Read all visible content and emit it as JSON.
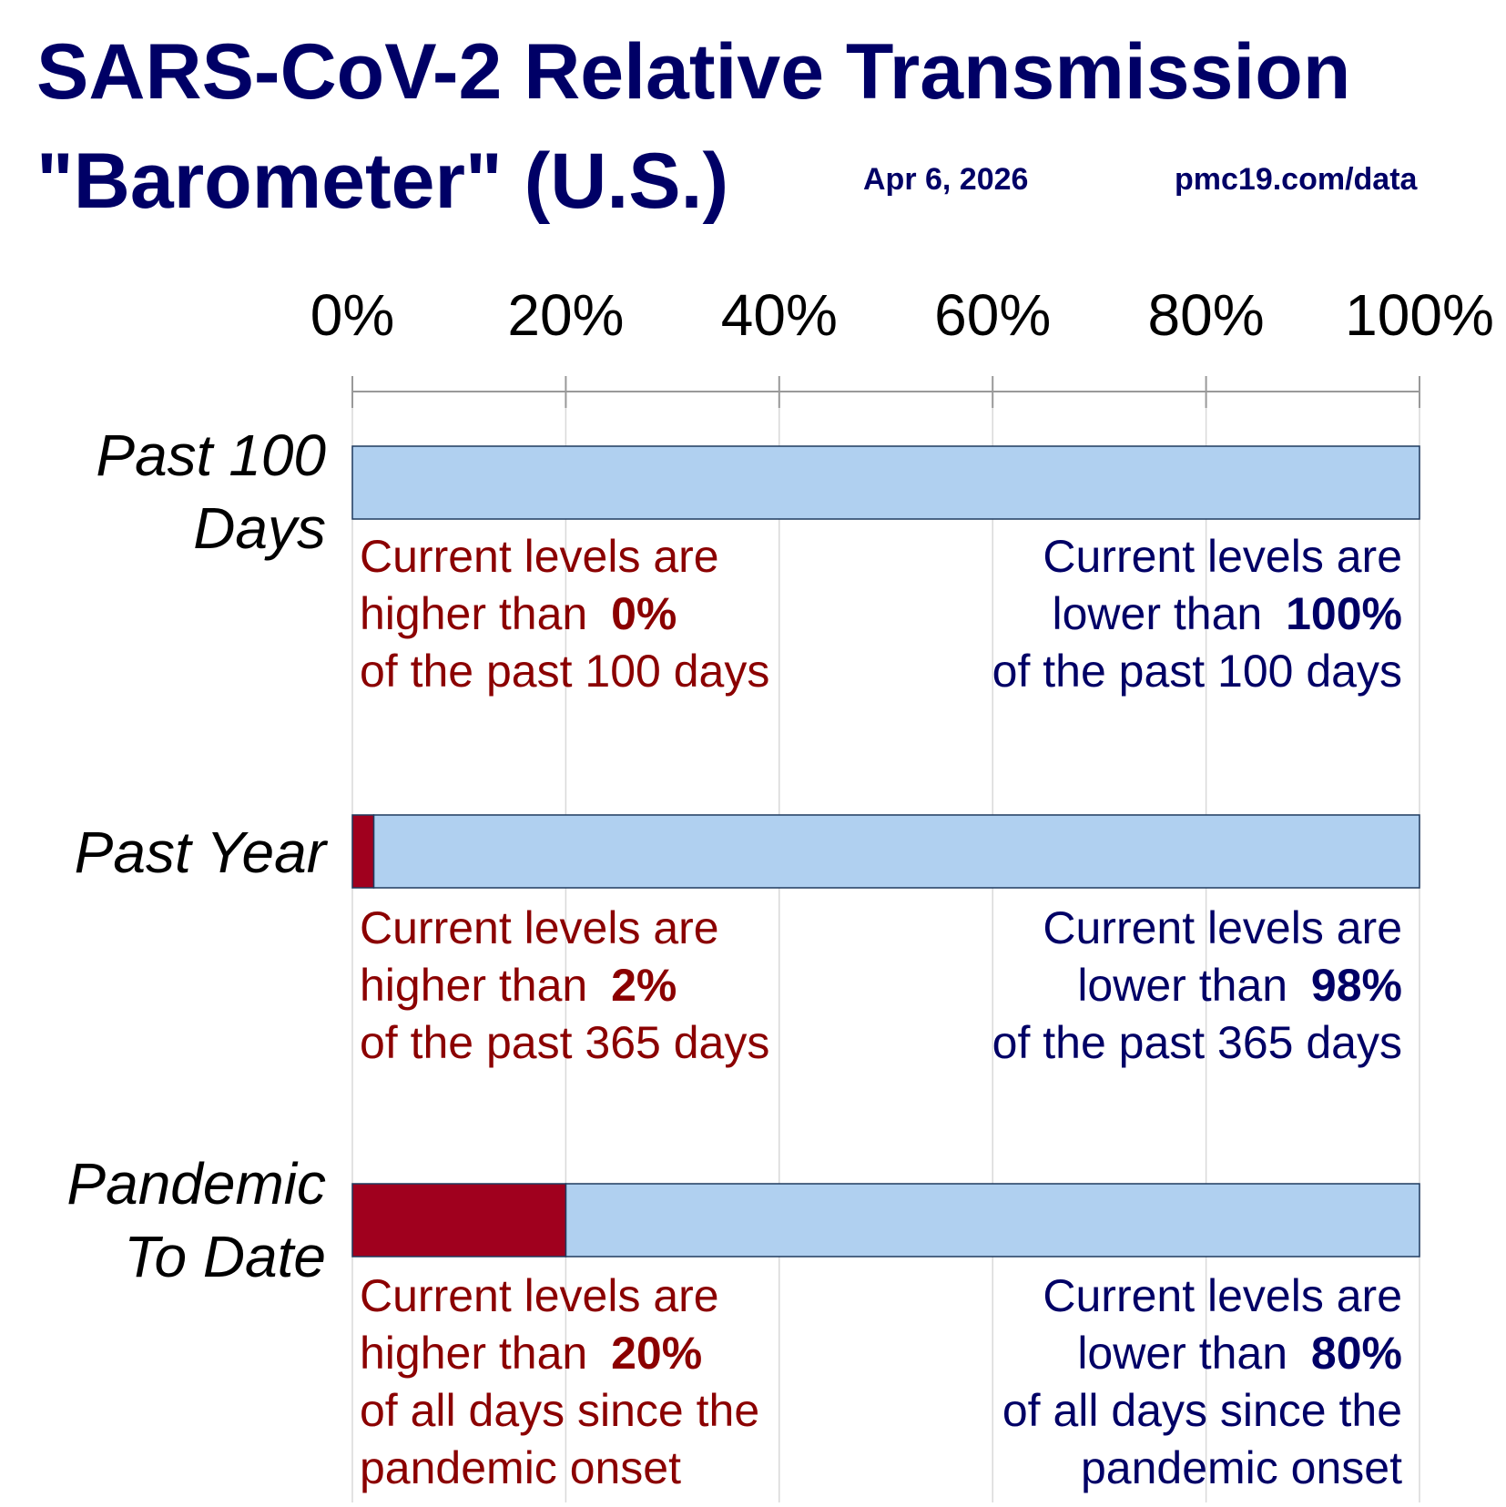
{
  "title_line1": "SARS-CoV-2 Relative Transmission",
  "title_line2": "\"Barometer\" (U.S.)",
  "date": "Apr 6, 2026",
  "source": "pmc19.com/data",
  "colors": {
    "title": "#000066",
    "higher": "#8b0000",
    "lower": "#000066",
    "higher_bar": "#a0001e",
    "lower_bar": "#b0d0f0"
  },
  "chart_data": {
    "type": "bar",
    "orientation": "horizontal",
    "stacked": true,
    "xlim": [
      0,
      100
    ],
    "xticks": [
      "0%",
      "20%",
      "40%",
      "60%",
      "80%",
      "100%"
    ],
    "grid": true,
    "categories": [
      "Past 100 Days",
      "Past Year",
      "Pandemic To Date"
    ],
    "series": [
      {
        "values": [
          0,
          2,
          20
        ]
      },
      {
        "values": [
          100,
          98,
          80
        ]
      }
    ],
    "rows": [
      {
        "label_lines": [
          "Past 100",
          "Days"
        ],
        "higher_value": 0,
        "lower_value": 100,
        "higher_lines": [
          "Current levels are",
          "higher than ",
          "of the past 100 days"
        ],
        "higher_pct": "0%",
        "lower_lines": [
          "Current levels are",
          "lower than ",
          "of the past 100 days"
        ],
        "lower_pct": "100%"
      },
      {
        "label_lines": [
          "Past Year"
        ],
        "higher_value": 2,
        "lower_value": 98,
        "higher_lines": [
          "Current levels are",
          "higher than ",
          "of the past 365 days"
        ],
        "higher_pct": "2%",
        "lower_lines": [
          "Current levels are",
          "lower than ",
          "of the past 365 days"
        ],
        "lower_pct": "98%"
      },
      {
        "label_lines": [
          "Pandemic",
          "To Date"
        ],
        "higher_value": 20,
        "lower_value": 80,
        "higher_lines": [
          "Current levels are",
          "higher than ",
          "of all days since the",
          "pandemic onset"
        ],
        "higher_pct": "20%",
        "lower_lines": [
          "Current levels are",
          "lower than ",
          "of all days since the",
          "pandemic onset"
        ],
        "lower_pct": "80%"
      }
    ]
  }
}
